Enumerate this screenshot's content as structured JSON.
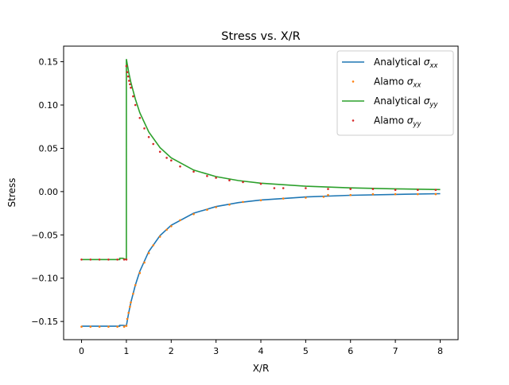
{
  "chart_data": {
    "type": "line",
    "title": "Stress vs. X/R",
    "xlabel": "X/R",
    "ylabel": "Stress",
    "xlim": [
      -0.4,
      8.4
    ],
    "ylim": [
      -0.171,
      0.168
    ],
    "xticks": [
      0,
      1,
      2,
      3,
      4,
      5,
      6,
      7,
      8
    ],
    "xtick_labels": [
      "0",
      "1",
      "2",
      "3",
      "4",
      "5",
      "6",
      "7",
      "8"
    ],
    "yticks": [
      -0.15,
      -0.1,
      -0.05,
      0.0,
      0.05,
      0.1,
      0.15
    ],
    "ytick_labels": [
      "−0.15",
      "−0.10",
      "−0.05",
      "0.00",
      "0.05",
      "0.10",
      "0.15"
    ],
    "grid": false,
    "legend_position": "upper right",
    "series": [
      {
        "name": "Analytical σxx",
        "legend_main": "Analytical ",
        "legend_sub": "xx",
        "style": "line",
        "color": "#1f77b4",
        "x": [
          0,
          0.85,
          0.85,
          0.92,
          1.0,
          1.05,
          1.1,
          1.2,
          1.3,
          1.5,
          1.75,
          2.0,
          2.5,
          3.0,
          3.5,
          4.0,
          5.0,
          6.0,
          7.0,
          8.0
        ],
        "y": [
          -0.1555,
          -0.1555,
          -0.1545,
          -0.1545,
          -0.155,
          -0.1406,
          -0.1281,
          -0.108,
          -0.092,
          -0.0691,
          -0.0508,
          -0.0389,
          -0.0249,
          -0.0173,
          -0.0127,
          -0.0097,
          -0.0062,
          -0.0043,
          -0.0032,
          -0.0024
        ]
      },
      {
        "name": "Alamo σxx",
        "legend_main": "Alamo ",
        "legend_sub": "xx",
        "style": "dots",
        "color": "#ff7f0e",
        "x": [
          0,
          0.2,
          0.4,
          0.6,
          0.8,
          0.95,
          1.0,
          1.02,
          1.05,
          1.08,
          1.1,
          1.15,
          1.2,
          1.3,
          1.4,
          1.5,
          1.6,
          1.75,
          1.9,
          2.0,
          2.2,
          2.5,
          2.8,
          3.0,
          3.3,
          3.6,
          4.0,
          4.5,
          5.0,
          5.4,
          5.5,
          6.0,
          6.5,
          7.0,
          7.5,
          7.9
        ],
        "y": [
          -0.156,
          -0.156,
          -0.156,
          -0.156,
          -0.156,
          -0.156,
          -0.155,
          -0.147,
          -0.14,
          -0.133,
          -0.128,
          -0.118,
          -0.108,
          -0.094,
          -0.082,
          -0.071,
          -0.062,
          -0.052,
          -0.044,
          -0.04,
          -0.033,
          -0.026,
          -0.021,
          -0.018,
          -0.015,
          -0.012,
          -0.01,
          -0.008,
          -0.007,
          -0.006,
          -0.004,
          -0.004,
          -0.003,
          -0.003,
          -0.003,
          -0.003
        ]
      },
      {
        "name": "Analytical σyy",
        "legend_main": "Analytical ",
        "legend_sub": "yy",
        "style": "line",
        "color": "#2ca02c",
        "x": [
          0,
          0.85,
          0.85,
          0.92,
          1.0,
          1.0,
          1.05,
          1.1,
          1.2,
          1.3,
          1.5,
          1.75,
          2.0,
          2.5,
          3.0,
          3.5,
          4.0,
          5.0,
          6.0,
          7.0,
          8.0
        ],
        "y": [
          -0.0785,
          -0.0785,
          -0.077,
          -0.077,
          -0.0785,
          0.153,
          0.1383,
          0.1262,
          0.1068,
          0.0911,
          0.0688,
          0.0508,
          0.0389,
          0.0249,
          0.0173,
          0.0127,
          0.0097,
          0.0062,
          0.0043,
          0.0032,
          0.0024
        ]
      },
      {
        "name": "Alamo σyy",
        "legend_main": "Alamo ",
        "legend_sub": "yy",
        "style": "dots",
        "color": "#d62728",
        "x": [
          0,
          0.2,
          0.4,
          0.6,
          0.8,
          0.95,
          1.0,
          1.0,
          1.02,
          1.04,
          1.06,
          1.08,
          1.1,
          1.15,
          1.2,
          1.3,
          1.4,
          1.5,
          1.6,
          1.75,
          1.9,
          2.0,
          2.2,
          2.5,
          2.8,
          3.0,
          3.3,
          3.6,
          4.0,
          4.3,
          4.5,
          5.0,
          5.5,
          6.0,
          6.5,
          7.0,
          7.5,
          7.9
        ],
        "y": [
          -0.0785,
          -0.0785,
          -0.0785,
          -0.0785,
          -0.0785,
          -0.0785,
          -0.0785,
          0.145,
          0.138,
          0.133,
          0.128,
          0.124,
          0.12,
          0.11,
          0.1,
          0.085,
          0.073,
          0.063,
          0.055,
          0.046,
          0.039,
          0.036,
          0.029,
          0.023,
          0.018,
          0.016,
          0.013,
          0.011,
          0.009,
          0.004,
          0.004,
          0.004,
          0.003,
          0.003,
          0.003,
          0.002,
          0.002,
          0.002
        ]
      }
    ]
  }
}
